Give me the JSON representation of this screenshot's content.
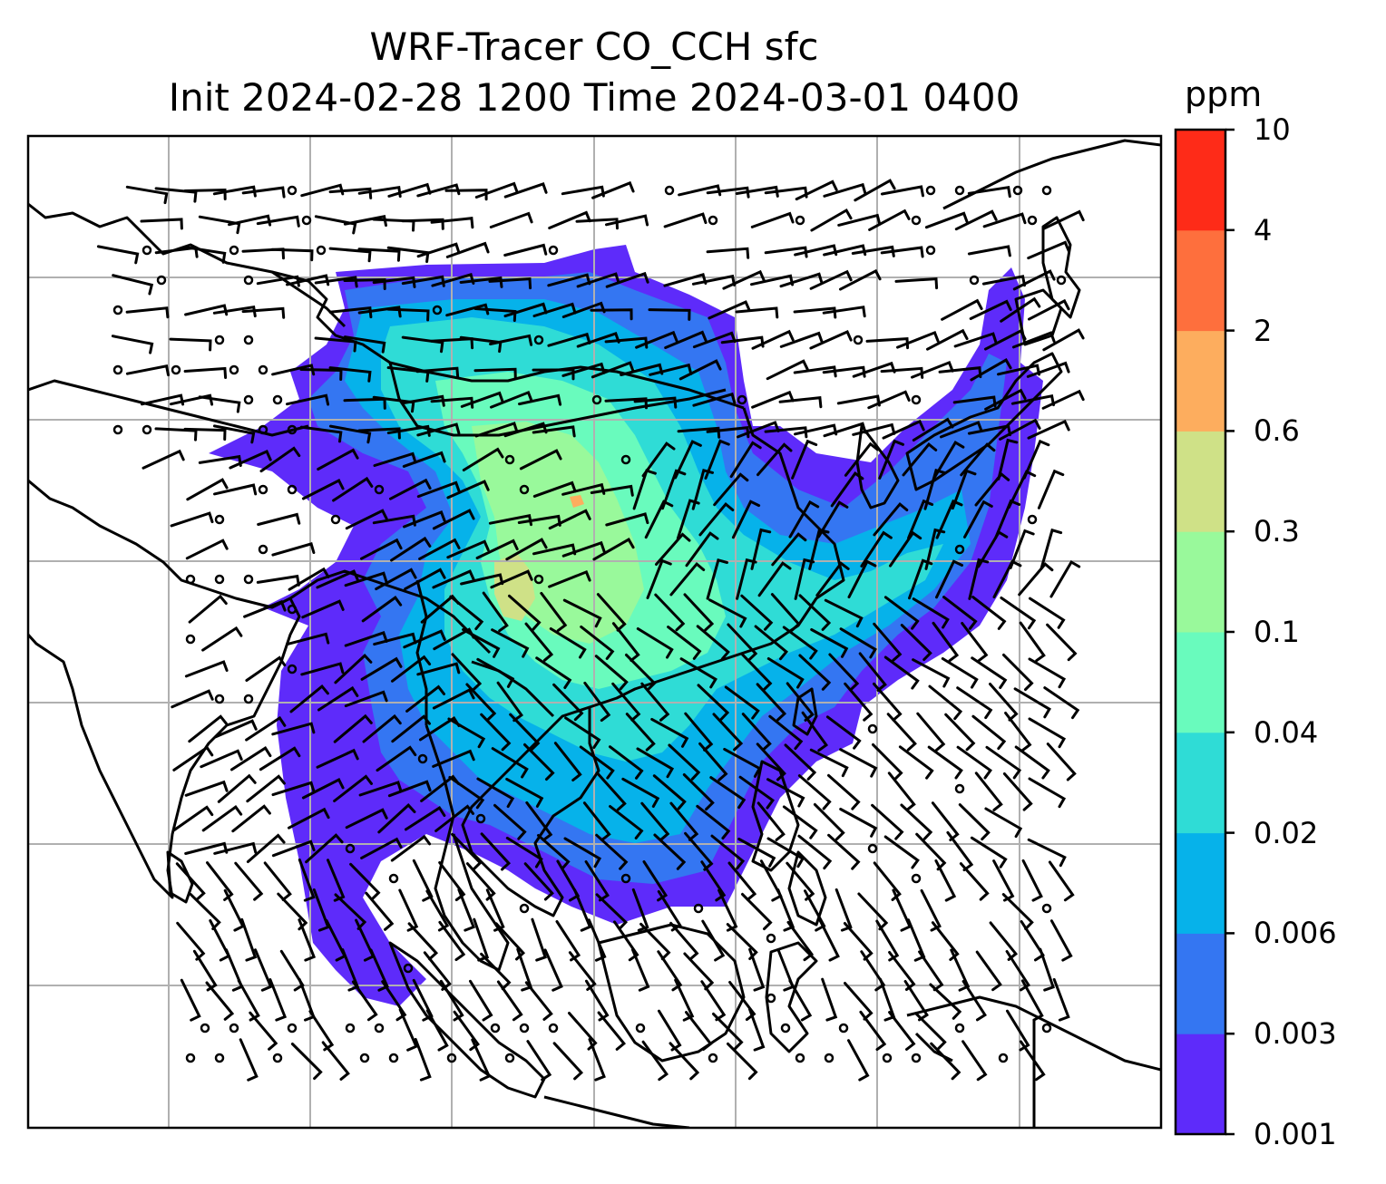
{
  "title_line1": "WRF-Tracer CO_CCH sfc",
  "title_line2": "Init 2024-02-28 1200 Time 2024-03-01 0400",
  "colorbar": {
    "units": "ppm",
    "levels": [
      "0.001",
      "0.003",
      "0.006",
      "0.02",
      "0.04",
      "0.1",
      "0.3",
      "0.6",
      "2",
      "4",
      "10"
    ],
    "colors": [
      "#5e2bfa",
      "#3476f2",
      "#06b2ea",
      "#2fdcd6",
      "#69fbbd",
      "#99f99b",
      "#cfe187",
      "#fdad5e",
      "#fe6f3d",
      "#fe2b18"
    ]
  },
  "map": {
    "grid": "on",
    "coastline_color": "#000000",
    "gridline_color": "#b0b0b0"
  }
}
